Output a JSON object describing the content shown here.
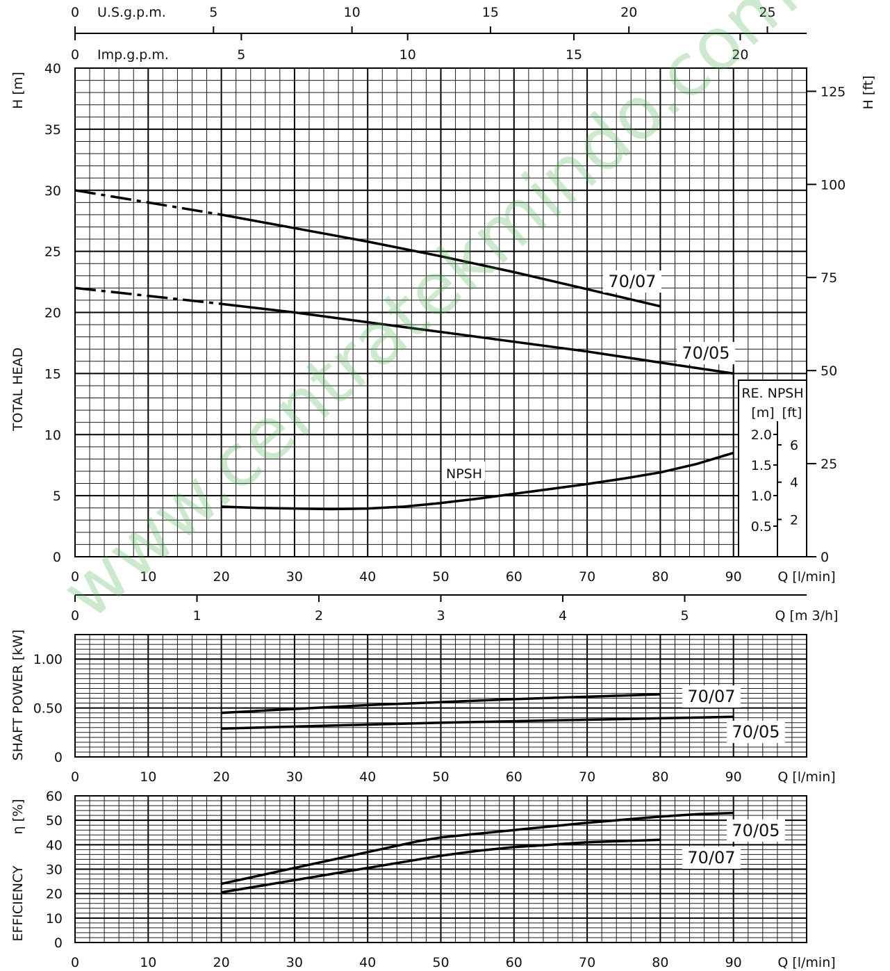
{
  "watermark": "www.centratekmindo.com",
  "chart_data": [
    {
      "name": "head",
      "type": "line",
      "title": "",
      "ylabel_left": "H [m]",
      "ylabel_left_side": "TOTAL HEAD",
      "ylabel_right": "H [ft]",
      "xlabel": "Q [l/min]",
      "xlabel_m3h": "Q [m 3/h]",
      "xlim": [
        0,
        100
      ],
      "ylim": [
        0,
        40
      ],
      "x_ticks": [
        0,
        10,
        20,
        30,
        40,
        50,
        60,
        70,
        80,
        90
      ],
      "y_ticks": [
        0,
        5,
        10,
        15,
        20,
        25,
        30,
        35,
        40
      ],
      "ft_ticks": [
        0,
        25,
        50,
        75,
        100,
        125
      ],
      "usgpm_label": "U.S.g.p.m.",
      "usgpm_ticks": [
        0,
        5,
        10,
        15,
        20,
        25
      ],
      "impgpm_label": "Imp.g.p.m.",
      "impgpm_ticks": [
        0,
        5,
        10,
        15,
        20
      ],
      "m3h_ticks": [
        0,
        1,
        2,
        3,
        4,
        5
      ],
      "series": [
        {
          "name": "70/07",
          "x": [
            20,
            30,
            40,
            50,
            60,
            70,
            80
          ],
          "y": [
            28.0,
            26.9,
            25.8,
            24.6,
            23.3,
            21.9,
            20.5
          ],
          "dashed_x": [
            0,
            20
          ],
          "dashed_y": [
            30.0,
            28.0
          ]
        },
        {
          "name": "70/05",
          "x": [
            20,
            30,
            40,
            50,
            60,
            70,
            80,
            90
          ],
          "y": [
            20.7,
            20.0,
            19.2,
            18.4,
            17.6,
            16.8,
            15.9,
            15.0
          ],
          "dashed_x": [
            0,
            20
          ],
          "dashed_y": [
            22.0,
            20.7
          ]
        }
      ],
      "npsh": {
        "name": "NPSH",
        "x": [
          20,
          25,
          30,
          35,
          40,
          45,
          50,
          55,
          60,
          65,
          70,
          75,
          80,
          85,
          90
        ],
        "y": [
          4.1,
          4.0,
          3.95,
          3.9,
          3.95,
          4.1,
          4.4,
          4.75,
          5.15,
          5.55,
          5.95,
          6.4,
          6.9,
          7.6,
          8.5
        ]
      },
      "npsh_inset": {
        "title": "RE. NPSH",
        "unit_m": "[m]",
        "unit_ft": "[ft]",
        "m_ticks": [
          0.5,
          1.0,
          1.5,
          2.0
        ],
        "ft_ticks": [
          2,
          4,
          6
        ]
      }
    },
    {
      "name": "power",
      "type": "line",
      "ylabel": "SHAFT POWER [kW]",
      "xlabel": "Q [l/min]",
      "xlim": [
        0,
        100
      ],
      "ylim": [
        0,
        1.25
      ],
      "x_ticks": [
        0,
        10,
        20,
        30,
        40,
        50,
        60,
        70,
        80,
        90
      ],
      "y_ticks": [
        0,
        0.5,
        1.0
      ],
      "y_tick_labels": [
        "0",
        "0.50",
        "1.00"
      ],
      "series": [
        {
          "name": "70/07",
          "x": [
            20,
            30,
            40,
            50,
            60,
            70,
            80
          ],
          "y": [
            0.45,
            0.49,
            0.53,
            0.56,
            0.59,
            0.615,
            0.64
          ]
        },
        {
          "name": "70/05",
          "x": [
            20,
            30,
            40,
            50,
            60,
            70,
            80,
            90
          ],
          "y": [
            0.29,
            0.31,
            0.33,
            0.35,
            0.365,
            0.38,
            0.395,
            0.41
          ]
        }
      ]
    },
    {
      "name": "efficiency",
      "type": "line",
      "ylabel": "EFFICIENCY",
      "ylabel_unit": "η [%]",
      "xlabel": "Q [l/min]",
      "xlim": [
        0,
        100
      ],
      "ylim": [
        0,
        60
      ],
      "x_ticks": [
        0,
        10,
        20,
        30,
        40,
        50,
        60,
        70,
        80,
        90
      ],
      "y_ticks": [
        0,
        10,
        20,
        30,
        40,
        50,
        60
      ],
      "series": [
        {
          "name": "70/05",
          "x": [
            20,
            30,
            40,
            47,
            50,
            60,
            70,
            80,
            85,
            90
          ],
          "y": [
            24,
            30.5,
            37,
            41.5,
            43,
            46,
            49,
            51.5,
            52.5,
            53
          ]
        },
        {
          "name": "70/07",
          "x": [
            20,
            30,
            40,
            50,
            55,
            60,
            70,
            80
          ],
          "y": [
            20.5,
            25.5,
            30.5,
            35.5,
            37.5,
            39,
            41,
            42
          ]
        }
      ]
    }
  ]
}
